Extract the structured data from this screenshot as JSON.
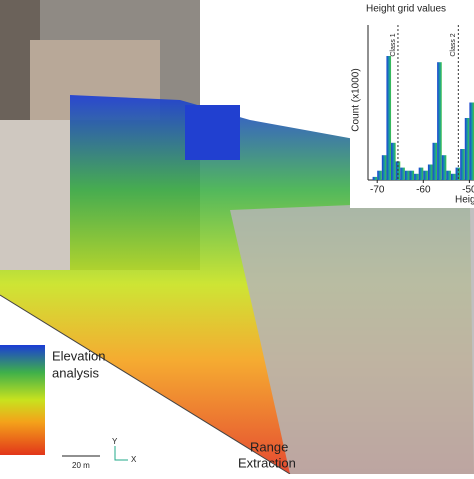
{
  "labels": {
    "elevation": [
      "Elevation",
      "analysis"
    ],
    "range": [
      "Range",
      "Extraction"
    ],
    "scale": "20 m",
    "axis_y": "Y",
    "axis_x": "X"
  },
  "chart_data": {
    "type": "histogram",
    "title": "Height grid values",
    "ylabel": "Count (x1000)",
    "xlabel": "Heig",
    "bins": [
      -72,
      -71,
      -70,
      -69,
      -68,
      -67,
      -66,
      -65,
      -64,
      -63,
      -62,
      -61,
      -60,
      -59,
      -58,
      -57,
      -56,
      -55,
      -54,
      -53,
      -52,
      -51,
      -50,
      -49
    ],
    "counts": [
      0,
      1,
      3,
      8,
      40,
      12,
      6,
      4,
      3,
      3,
      2,
      4,
      3,
      5,
      12,
      38,
      8,
      3,
      2,
      4,
      10,
      20,
      25
    ],
    "xlim": [
      -72,
      -49
    ],
    "ylim": [
      0,
      50
    ],
    "xticks": [
      -70,
      -60,
      -50
    ],
    "class_lines": [
      {
        "value": -65.5,
        "label": "Class 1"
      },
      {
        "value": -52.4,
        "label": "Class 2"
      }
    ]
  }
}
